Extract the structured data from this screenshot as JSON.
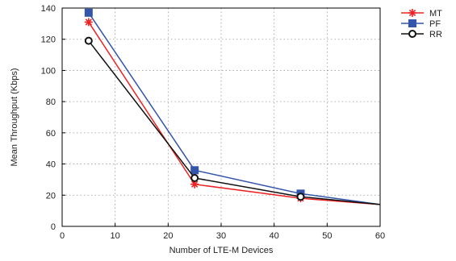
{
  "chart_data": {
    "type": "line",
    "title": "",
    "xlabel": "Number of LTE-M Devices",
    "ylabel": "Mean Throughput (Kbps)",
    "xlim": [
      0,
      60
    ],
    "ylim": [
      0,
      140
    ],
    "xticks": [
      0,
      10,
      20,
      30,
      40,
      50,
      60
    ],
    "yticks": [
      0,
      20,
      40,
      60,
      80,
      100,
      120,
      140
    ],
    "grid": true,
    "legend_position": "top-right",
    "x": [
      5,
      25,
      45,
      60
    ],
    "series": [
      {
        "name": "MT",
        "color": "#ee2222",
        "marker": "asterisk",
        "values": [
          131,
          27,
          18,
          14
        ]
      },
      {
        "name": "PF",
        "color": "#3355aa",
        "marker": "square",
        "values": [
          137,
          36,
          21,
          14
        ]
      },
      {
        "name": "RR",
        "color": "#111111",
        "marker": "circle",
        "values": [
          119,
          31,
          19,
          14
        ]
      }
    ]
  }
}
